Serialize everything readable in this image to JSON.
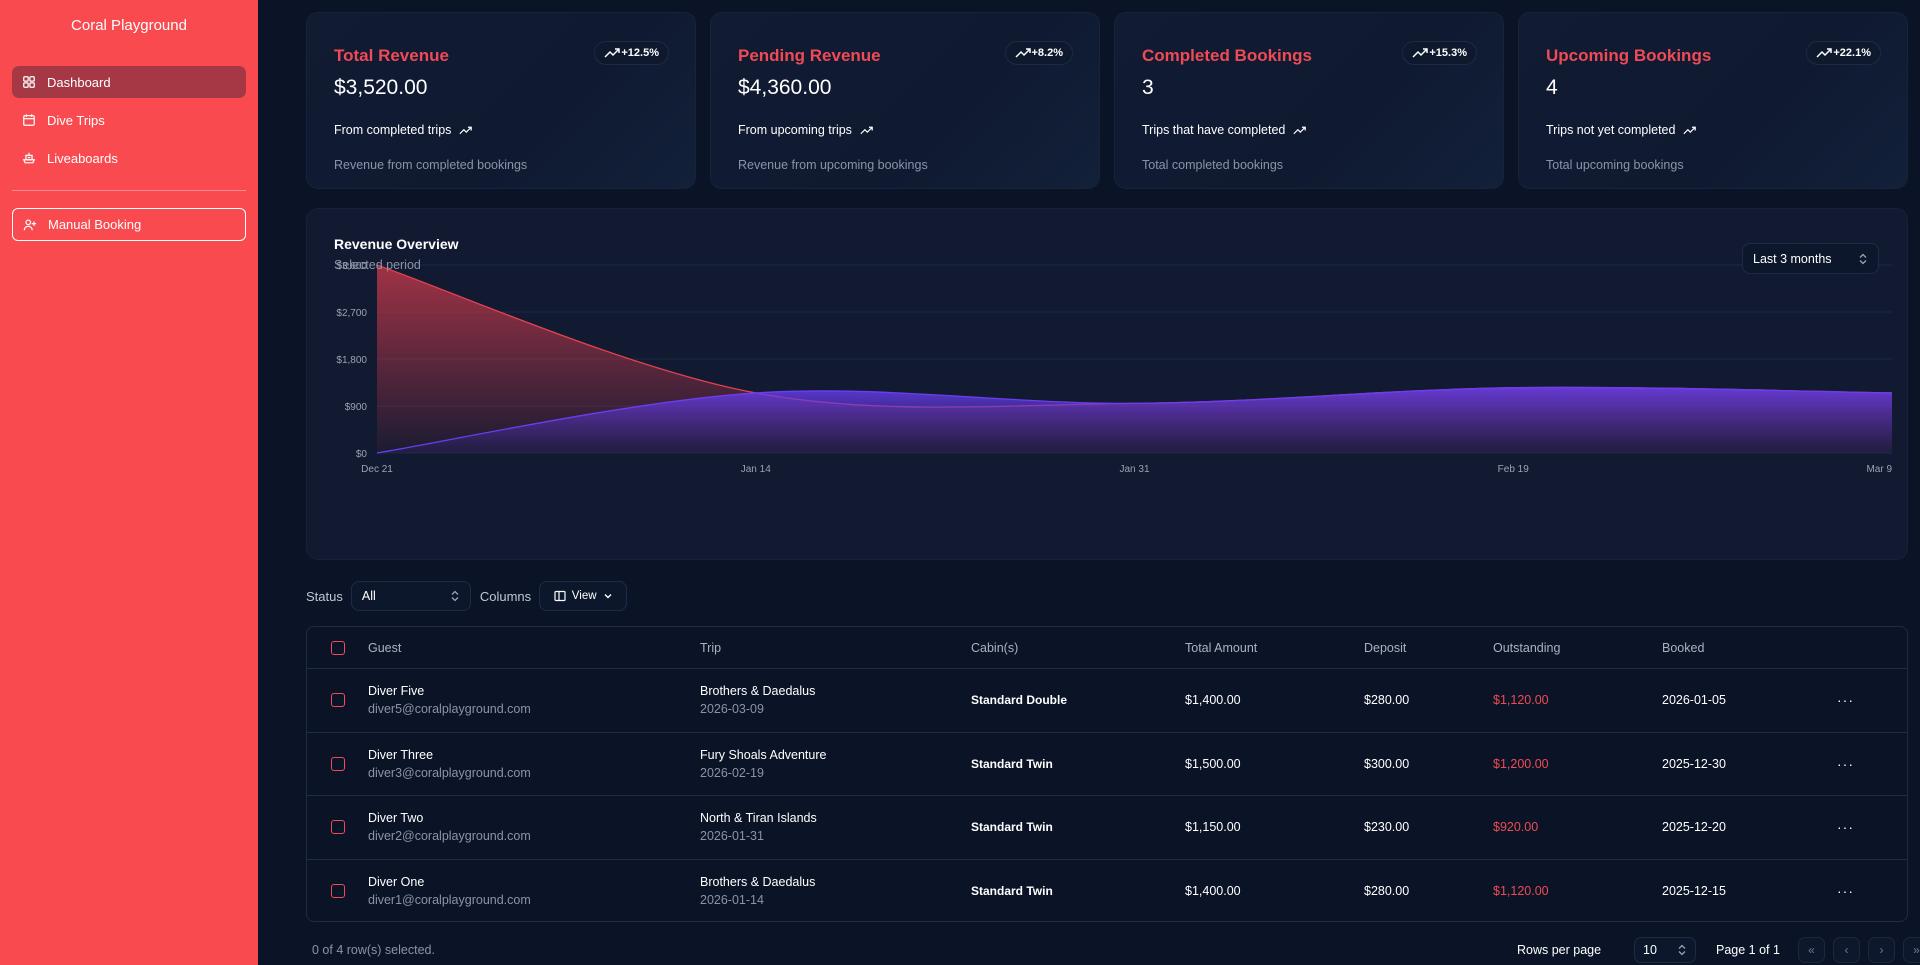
{
  "sidebar": {
    "brand": "Coral Playground",
    "items": [
      {
        "label": "Dashboard",
        "icon": "dashboard-icon",
        "active": true
      },
      {
        "label": "Dive Trips",
        "icon": "calendar-icon"
      },
      {
        "label": "Liveaboards",
        "icon": "ship-icon"
      }
    ],
    "manual_booking": "Manual Booking"
  },
  "cards": [
    {
      "title": "Total Revenue",
      "value": "$3,520.00",
      "badge": "+12.5%",
      "subtitle": "From completed trips",
      "note": "Revenue from completed bookings"
    },
    {
      "title": "Pending Revenue",
      "value": "$4,360.00",
      "badge": "+8.2%",
      "subtitle": "From upcoming trips",
      "note": "Revenue from upcoming bookings"
    },
    {
      "title": "Completed Bookings",
      "value": "3",
      "badge": "+15.3%",
      "subtitle": "Trips that have completed",
      "note": "Total completed bookings"
    },
    {
      "title": "Upcoming Bookings",
      "value": "4",
      "badge": "+22.1%",
      "subtitle": "Trips not yet completed",
      "note": "Total upcoming bookings"
    }
  ],
  "revenue_chart": {
    "title": "Revenue Overview",
    "subtitle": "Selected period",
    "period": "Last 3 months"
  },
  "chart_data": {
    "type": "area",
    "title": "Revenue Overview",
    "ylim": [
      0,
      3600
    ],
    "y_ticks": [
      "$0",
      "$900",
      "$1,800",
      "$2,700",
      "$3,600"
    ],
    "y_tick_values": [
      0,
      900,
      1800,
      2700,
      3600
    ],
    "x_ticks": [
      "Dec 21",
      "Jan 14",
      "Jan 31",
      "Feb 19",
      "Mar 9"
    ],
    "grid": true,
    "series": [
      {
        "color": "#e0414f",
        "x": [
          "Dec 21",
          "Jan 14",
          "Jan 31",
          "Feb 19",
          "Mar 9"
        ],
        "values": [
          3600,
          1150,
          950,
          1250,
          1150
        ]
      },
      {
        "color": "#6a3ef0",
        "x": [
          "Dec 21",
          "Jan 14",
          "Jan 31",
          "Feb 19",
          "Mar 9"
        ],
        "values": [
          0,
          1150,
          950,
          1250,
          1150
        ]
      }
    ]
  },
  "filters": {
    "status_label": "Status",
    "status_value": "All",
    "columns_label": "Columns",
    "view_label": "View"
  },
  "table": {
    "columns": [
      "Guest",
      "Trip",
      "Cabin(s)",
      "Total Amount",
      "Deposit",
      "Outstanding",
      "Booked"
    ],
    "rows": [
      {
        "guest": "Diver Five",
        "email": "diver5@coralplayground.com",
        "trip": "Brothers & Daedalus",
        "trip_date": "2026-03-09",
        "cabin": "Standard Double",
        "total": "$1,400.00",
        "deposit": "$280.00",
        "outstanding": "$1,120.00",
        "booked": "2026-01-05"
      },
      {
        "guest": "Diver Three",
        "email": "diver3@coralplayground.com",
        "trip": "Fury Shoals Adventure",
        "trip_date": "2026-02-19",
        "cabin": "Standard Twin",
        "total": "$1,500.00",
        "deposit": "$300.00",
        "outstanding": "$1,200.00",
        "booked": "2025-12-30"
      },
      {
        "guest": "Diver Two",
        "email": "diver2@coralplayground.com",
        "trip": "North & Tiran Islands",
        "trip_date": "2026-01-31",
        "cabin": "Standard Twin",
        "total": "$1,150.00",
        "deposit": "$230.00",
        "outstanding": "$920.00",
        "booked": "2025-12-20"
      },
      {
        "guest": "Diver One",
        "email": "diver1@coralplayground.com",
        "trip": "Brothers & Daedalus",
        "trip_date": "2026-01-14",
        "cabin": "Standard Twin",
        "total": "$1,400.00",
        "deposit": "$280.00",
        "outstanding": "$1,120.00",
        "booked": "2025-12-15"
      }
    ],
    "actions_icon": "more-horizontal-icon"
  },
  "footer": {
    "selected": "0 of 4 row(s) selected.",
    "rows_per_page_label": "Rows per page",
    "rows_per_page": "10",
    "page_info": "Page 1 of 1"
  },
  "colors": {
    "sidebar": "#f94a50",
    "accent": "#ef4a55",
    "background": "#0b1426",
    "series_red": "#e0414f",
    "series_purple": "#6a3ef0"
  }
}
